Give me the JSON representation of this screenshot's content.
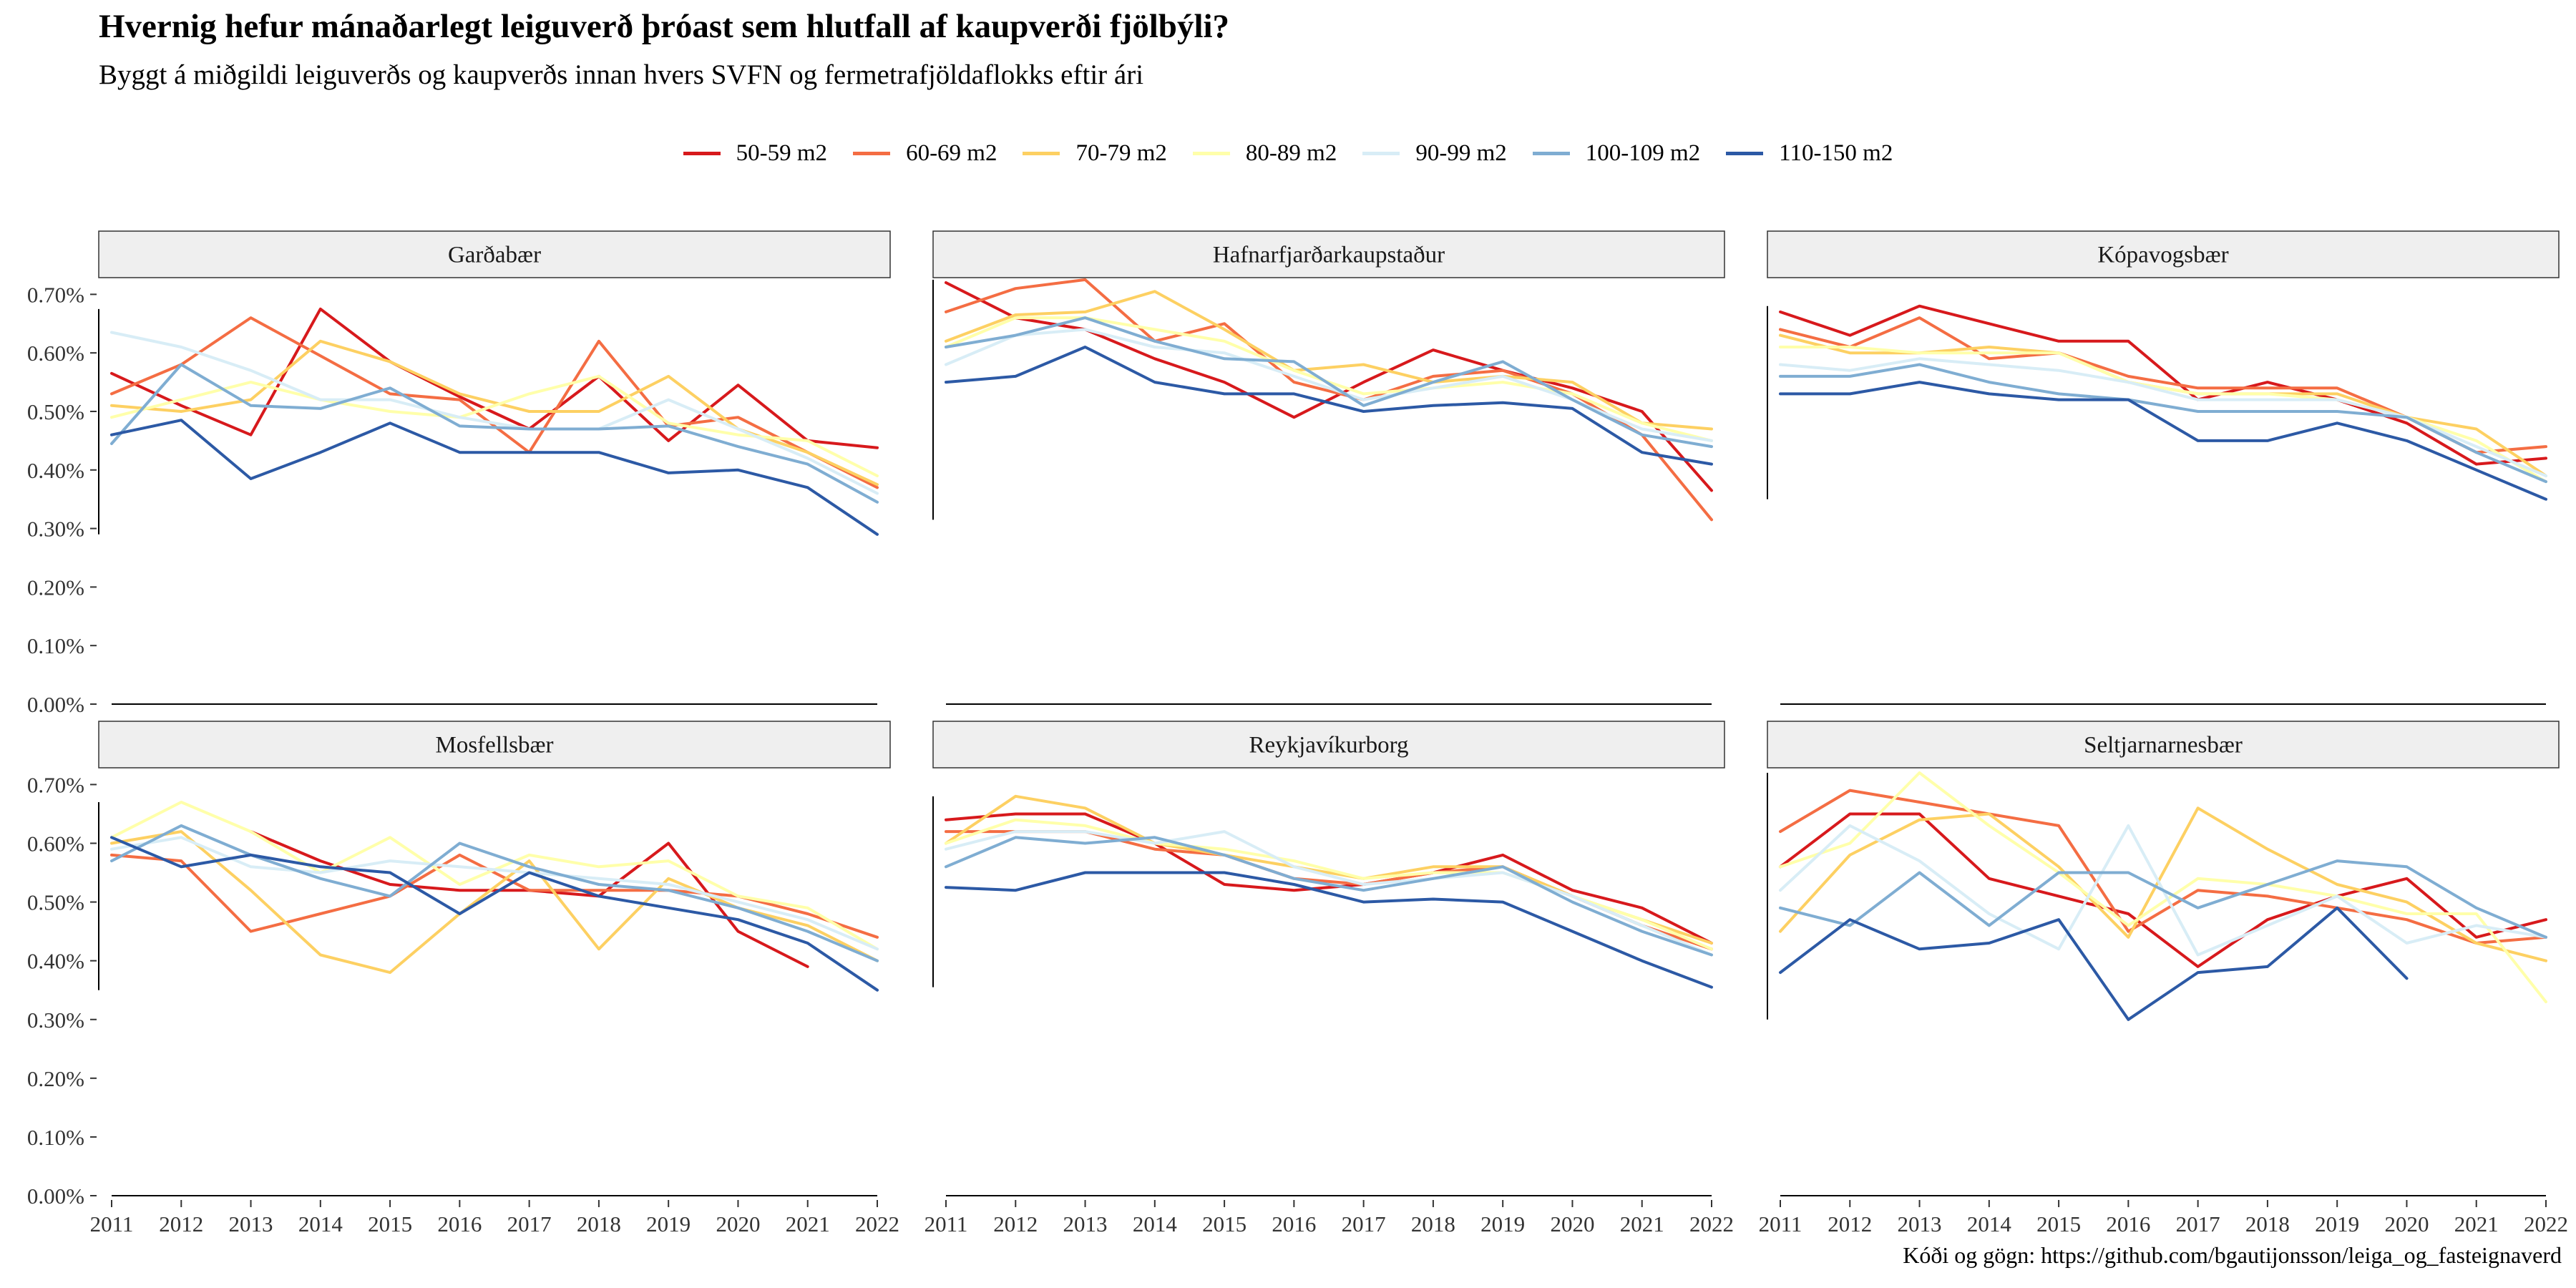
{
  "title": "Hvernig hefur mánaðarlegt leiguverð þróast sem hlutfall af kaupverði fjölbýli?",
  "subtitle": "Byggt á miðgildi leiguverðs og kaupverðs innan hvers SVFN og fermetrafjöldaflokks eftir ári",
  "caption": "Kóði og gögn: https://github.com/bgautijonsson/leiga_og_fasteignaverd",
  "chart_data": {
    "type": "line",
    "x": [
      2011,
      2012,
      2013,
      2014,
      2015,
      2016,
      2017,
      2018,
      2019,
      2020,
      2021,
      2022
    ],
    "ylim": [
      0,
      0.0072
    ],
    "yticks": [
      "0.00%",
      "0.10%",
      "0.20%",
      "0.30%",
      "0.40%",
      "0.50%",
      "0.60%",
      "0.70%"
    ],
    "ytick_values": [
      0,
      0.001,
      0.002,
      0.003,
      0.004,
      0.005,
      0.006,
      0.007
    ],
    "legend_position": "top",
    "series_meta": [
      {
        "name": "50-59 m2",
        "color": "#d7191c"
      },
      {
        "name": "60-69 m2",
        "color": "#f46d43"
      },
      {
        "name": "70-79 m2",
        "color": "#fdd062"
      },
      {
        "name": "80-89 m2",
        "color": "#ffffaa"
      },
      {
        "name": "90-99 m2",
        "color": "#d8edf6"
      },
      {
        "name": "100-109 m2",
        "color": "#7fadd2"
      },
      {
        "name": "110-150 m2",
        "color": "#2c59a5"
      }
    ],
    "panels": [
      {
        "name": "Garðabær",
        "series": [
          {
            "name": "50-59 m2",
            "values": [
              0.00565,
              0.0051,
              0.0046,
              0.00675,
              0.00585,
              0.00525,
              0.0047,
              0.0056,
              0.0045,
              0.00545,
              0.0045,
              0.00438
            ]
          },
          {
            "name": "60-69 m2",
            "values": [
              0.0053,
              0.0058,
              0.0066,
              0.00595,
              0.0053,
              0.0052,
              0.0043,
              0.0062,
              0.00475,
              0.0049,
              0.0043,
              0.0037
            ]
          },
          {
            "name": "70-79 m2",
            "values": [
              0.0051,
              0.005,
              0.0052,
              0.0062,
              0.00585,
              0.0053,
              0.005,
              0.005,
              0.0056,
              0.0047,
              0.0043,
              0.00375
            ]
          },
          {
            "name": "80-89 m2",
            "values": [
              0.0049,
              0.0052,
              0.0055,
              0.0052,
              0.005,
              0.0049,
              0.0053,
              0.0056,
              0.0048,
              0.0046,
              0.0045,
              0.0039
            ]
          },
          {
            "name": "90-99 m2",
            "values": [
              0.00635,
              0.0061,
              0.0057,
              0.0052,
              0.0052,
              0.0049,
              0.0047,
              0.0047,
              0.0052,
              0.0047,
              0.0042,
              0.0036
            ]
          },
          {
            "name": "100-109 m2",
            "values": [
              0.00445,
              0.0058,
              0.0051,
              0.00505,
              0.0054,
              0.00475,
              0.0047,
              0.0047,
              0.00475,
              0.0044,
              0.0041,
              0.00345
            ]
          },
          {
            "name": "110-150 m2",
            "values": [
              0.0046,
              0.00485,
              0.00385,
              0.0043,
              0.0048,
              0.0043,
              0.0043,
              0.0043,
              0.00395,
              0.004,
              0.0037,
              0.0029
            ]
          }
        ]
      },
      {
        "name": "Hafnarfjarðarkaupstaður",
        "series": [
          {
            "name": "50-59 m2",
            "values": [
              0.0072,
              0.0066,
              0.0064,
              0.0059,
              0.0055,
              0.0049,
              0.0055,
              0.00605,
              0.0057,
              0.0054,
              0.005,
              0.00365
            ]
          },
          {
            "name": "60-69 m2",
            "values": [
              0.0067,
              0.0071,
              0.00725,
              0.0062,
              0.0065,
              0.0055,
              0.0052,
              0.0056,
              0.0057,
              0.0053,
              0.0046,
              0.00315
            ]
          },
          {
            "name": "70-79 m2",
            "values": [
              0.0062,
              0.00665,
              0.0067,
              0.00705,
              0.0064,
              0.0057,
              0.0058,
              0.0055,
              0.0056,
              0.0055,
              0.0048,
              0.0047
            ]
          },
          {
            "name": "80-89 m2",
            "values": [
              0.0061,
              0.0066,
              0.0066,
              0.0064,
              0.0062,
              0.0057,
              0.0053,
              0.0054,
              0.0055,
              0.0053,
              0.0048,
              0.0045
            ]
          },
          {
            "name": "90-99 m2",
            "values": [
              0.0058,
              0.0063,
              0.0064,
              0.0061,
              0.006,
              0.0056,
              0.0052,
              0.0054,
              0.0056,
              0.0052,
              0.0047,
              0.0045
            ]
          },
          {
            "name": "100-109 m2",
            "values": [
              0.0061,
              0.0063,
              0.0066,
              0.0062,
              0.0059,
              0.00585,
              0.0051,
              0.0055,
              0.00585,
              0.0052,
              0.0046,
              0.0044
            ]
          },
          {
            "name": "110-150 m2",
            "values": [
              0.0055,
              0.0056,
              0.0061,
              0.0055,
              0.0053,
              0.0053,
              0.005,
              0.0051,
              0.00515,
              0.00505,
              0.0043,
              0.0041
            ]
          }
        ]
      },
      {
        "name": "Kópavogsbær",
        "series": [
          {
            "name": "50-59 m2",
            "values": [
              0.0067,
              0.0063,
              0.0068,
              0.0065,
              0.0062,
              0.0062,
              0.0052,
              0.0055,
              0.0052,
              0.0048,
              0.0041,
              0.0042
            ]
          },
          {
            "name": "60-69 m2",
            "values": [
              0.0064,
              0.0061,
              0.0066,
              0.0059,
              0.006,
              0.0056,
              0.0054,
              0.0054,
              0.0054,
              0.0049,
              0.0043,
              0.0044
            ]
          },
          {
            "name": "70-79 m2",
            "values": [
              0.0063,
              0.006,
              0.006,
              0.0061,
              0.006,
              0.0055,
              0.0053,
              0.0053,
              0.0053,
              0.0049,
              0.0047,
              0.0039
            ]
          },
          {
            "name": "80-89 m2",
            "values": [
              0.0061,
              0.0061,
              0.006,
              0.006,
              0.006,
              0.0055,
              0.0053,
              0.0053,
              0.0052,
              0.0049,
              0.0045,
              0.0038
            ]
          },
          {
            "name": "90-99 m2",
            "values": [
              0.0058,
              0.0057,
              0.0059,
              0.0058,
              0.0057,
              0.0055,
              0.0052,
              0.0052,
              0.0052,
              0.0049,
              0.0044,
              0.0039
            ]
          },
          {
            "name": "100-109 m2",
            "values": [
              0.0056,
              0.0056,
              0.0058,
              0.0055,
              0.0053,
              0.0052,
              0.005,
              0.005,
              0.005,
              0.0049,
              0.0043,
              0.0038
            ]
          },
          {
            "name": "110-150 m2",
            "values": [
              0.0053,
              0.0053,
              0.0055,
              0.0053,
              0.0052,
              0.0052,
              0.0045,
              0.0045,
              0.0048,
              0.0045,
              0.004,
              0.0035
            ]
          }
        ]
      },
      {
        "name": "Mosfellsbær",
        "series": [
          {
            "name": "50-59 m2",
            "values": [
              null,
              null,
              0.0062,
              0.0057,
              0.0053,
              0.0052,
              0.0052,
              0.0051,
              0.006,
              0.0045,
              0.0039,
              null
            ]
          },
          {
            "name": "60-69 m2",
            "values": [
              0.0058,
              0.0057,
              0.0045,
              0.0048,
              0.0051,
              0.0058,
              0.0052,
              0.0052,
              0.0052,
              0.0051,
              0.0048,
              0.0044
            ]
          },
          {
            "name": "70-79 m2",
            "values": [
              0.006,
              0.0062,
              0.0052,
              0.0041,
              0.0038,
              0.0048,
              0.0057,
              0.0042,
              0.0054,
              0.0049,
              0.0046,
              0.004
            ]
          },
          {
            "name": "80-89 m2",
            "values": [
              0.0061,
              0.0067,
              0.0062,
              0.0055,
              0.0061,
              0.0053,
              0.0058,
              0.0056,
              0.0057,
              0.0051,
              0.0049,
              0.0042
            ]
          },
          {
            "name": "90-99 m2",
            "values": [
              0.0059,
              0.0061,
              0.0056,
              0.0055,
              0.0057,
              0.0056,
              0.0055,
              0.0054,
              0.0053,
              0.005,
              0.0047,
              0.0042
            ]
          },
          {
            "name": "100-109 m2",
            "values": [
              0.0057,
              0.0063,
              0.0058,
              0.0054,
              0.0051,
              0.006,
              0.0056,
              0.0053,
              0.0052,
              0.0049,
              0.0045,
              0.004
            ]
          },
          {
            "name": "110-150 m2",
            "values": [
              0.0061,
              0.0056,
              0.0058,
              0.0056,
              0.0055,
              0.0048,
              0.0055,
              0.0051,
              0.0049,
              0.0047,
              0.0043,
              0.0035
            ]
          }
        ]
      },
      {
        "name": "Reykjavíkurborg",
        "series": [
          {
            "name": "50-59 m2",
            "values": [
              0.0064,
              0.0065,
              0.0065,
              0.006,
              0.0053,
              0.0052,
              0.0053,
              0.0055,
              0.0058,
              0.0052,
              0.0049,
              0.0043
            ]
          },
          {
            "name": "60-69 m2",
            "values": [
              0.0062,
              0.0062,
              0.0062,
              0.0059,
              0.0058,
              0.0054,
              0.0053,
              0.0055,
              0.0056,
              0.0051,
              0.0046,
              0.0042
            ]
          },
          {
            "name": "70-79 m2",
            "values": [
              0.006,
              0.0068,
              0.0066,
              0.006,
              0.0058,
              0.0056,
              0.0054,
              0.0056,
              0.0056,
              0.0051,
              0.0047,
              0.0043
            ]
          },
          {
            "name": "80-89 m2",
            "values": [
              0.006,
              0.0064,
              0.0063,
              0.006,
              0.0059,
              0.0057,
              0.0054,
              0.0055,
              0.0055,
              0.0051,
              0.0047,
              0.0042
            ]
          },
          {
            "name": "90-99 m2",
            "values": [
              0.0059,
              0.0062,
              0.0062,
              0.006,
              0.0062,
              0.0056,
              0.0053,
              0.0054,
              0.0055,
              0.0051,
              0.0046,
              0.0041
            ]
          },
          {
            "name": "100-109 m2",
            "values": [
              0.0056,
              0.0061,
              0.006,
              0.0061,
              0.0058,
              0.0054,
              0.0052,
              0.0054,
              0.0056,
              0.005,
              0.0045,
              0.0041
            ]
          },
          {
            "name": "110-150 m2",
            "values": [
              0.00525,
              0.0052,
              0.0055,
              0.0055,
              0.0055,
              0.0053,
              0.005,
              0.00505,
              0.005,
              0.0045,
              0.004,
              0.00355
            ]
          }
        ]
      },
      {
        "name": "Seltjarnarnesbær",
        "series": [
          {
            "name": "50-59 m2",
            "values": [
              0.0056,
              0.0065,
              0.0065,
              0.0054,
              0.0051,
              0.0048,
              0.0039,
              0.0047,
              0.0051,
              0.0054,
              0.0044,
              0.0047
            ]
          },
          {
            "name": "60-69 m2",
            "values": [
              0.0062,
              0.0069,
              0.0067,
              0.0065,
              0.0063,
              0.0045,
              0.0052,
              0.0051,
              0.0049,
              0.0047,
              0.0043,
              0.0044
            ]
          },
          {
            "name": "70-79 m2",
            "values": [
              0.0045,
              0.0058,
              0.0064,
              0.0065,
              0.0056,
              0.0044,
              0.0066,
              0.0059,
              0.0053,
              0.005,
              0.0043,
              0.004
            ]
          },
          {
            "name": "80-89 m2",
            "values": [
              0.0056,
              0.006,
              0.0072,
              0.0063,
              0.0055,
              0.0046,
              0.0054,
              0.0053,
              0.0051,
              0.0048,
              0.0048,
              0.0033
            ]
          },
          {
            "name": "90-99 m2",
            "values": [
              0.0052,
              0.0063,
              0.0057,
              0.0048,
              0.0042,
              0.0063,
              0.0041,
              0.0046,
              0.0051,
              0.0043,
              0.0046,
              0.0044
            ]
          },
          {
            "name": "100-109 m2",
            "values": [
              0.0049,
              0.0046,
              0.0055,
              0.0046,
              0.0055,
              0.0055,
              0.0049,
              0.0053,
              0.0057,
              0.0056,
              0.0049,
              0.0044
            ]
          },
          {
            "name": "110-150 m2",
            "values": [
              0.0038,
              0.0047,
              0.0042,
              0.0043,
              0.0047,
              0.003,
              0.0038,
              0.0039,
              0.0049,
              0.0037,
              null,
              null
            ]
          }
        ]
      }
    ]
  }
}
